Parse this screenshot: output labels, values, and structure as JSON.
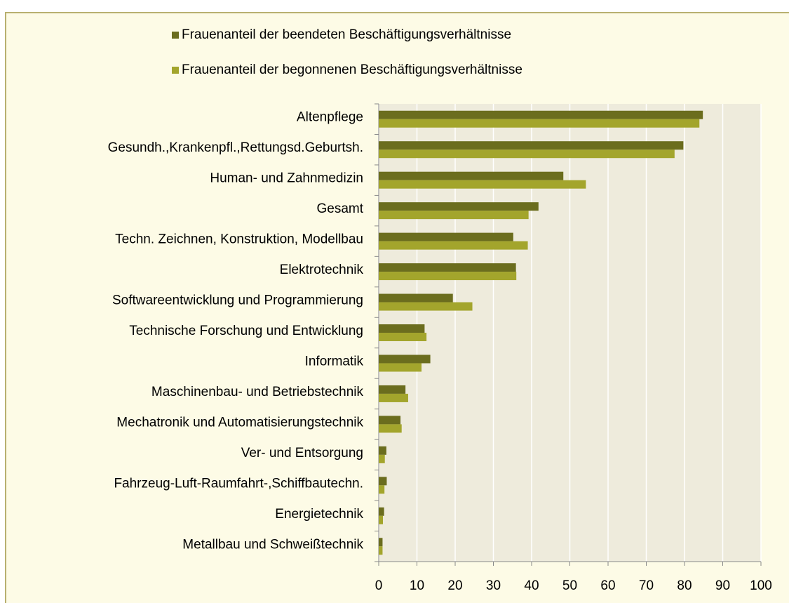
{
  "chart_data": {
    "type": "bar",
    "orientation": "horizontal",
    "categories": [
      "Altenpflege",
      "Gesundh.,Krankenpfl.,Rettungsd.Geburtsh.",
      "Human- und Zahnmedizin",
      "Gesamt",
      "Techn. Zeichnen, Konstruktion, Modellbau",
      "Elektrotechnik",
      "Softwareentwicklung und Programmierung",
      "Technische Forschung und Entwicklung",
      "Informatik",
      "Maschinenbau- und Betriebstechnik",
      "Mechatronik und Automatisierungstechnik",
      "Ver- und Entsorgung",
      "Fahrzeug-Luft-Raumfahrt-,Schiffbautechn.",
      "Energietechnik",
      "Metallbau und Schweißtechnik"
    ],
    "series": [
      {
        "name": "Frauenanteil der beendeten Beschäftigungsverhältnisse",
        "color": "#6b6d1e",
        "values": [
          84.8,
          79.7,
          48.3,
          41.8,
          35.2,
          35.9,
          19.4,
          12.0,
          13.5,
          7.0,
          5.7,
          2.0,
          2.1,
          1.4,
          1.0
        ]
      },
      {
        "name": "Frauenanteil der begonnenen Beschäftigungsverhältnisse",
        "color": "#a3a52c",
        "values": [
          83.9,
          77.4,
          54.2,
          39.2,
          39.0,
          36.0,
          24.5,
          12.5,
          11.2,
          7.7,
          6.0,
          1.6,
          1.5,
          1.1,
          1.0
        ]
      }
    ],
    "xlim": [
      0,
      100
    ],
    "xticks": [
      0,
      10,
      20,
      30,
      40,
      50,
      60,
      70,
      80,
      90,
      100
    ],
    "grid": true
  }
}
